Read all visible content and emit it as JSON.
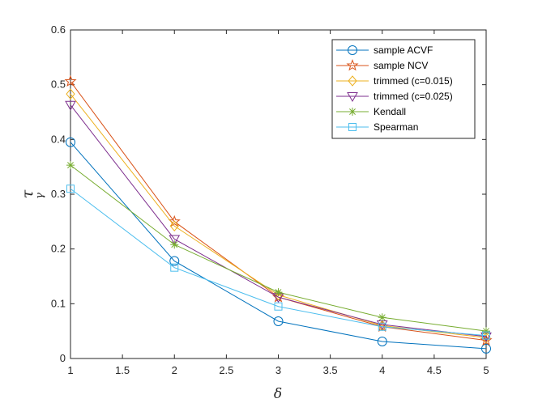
{
  "chart_data": {
    "type": "line",
    "xlabel": "δ",
    "ylabel": "τ",
    "ylabel_sub": "γ",
    "xlim": [
      1,
      5
    ],
    "ylim": [
      0,
      0.6
    ],
    "x_ticks": [
      "1",
      "1.5",
      "2",
      "2.5",
      "3",
      "3.5",
      "4",
      "4.5",
      "5"
    ],
    "y_ticks": [
      "0",
      "0.1",
      "0.2",
      "0.3",
      "0.4",
      "0.5",
      "0.6"
    ],
    "grid": false,
    "legend_position": "top-right",
    "x": [
      1,
      2,
      3,
      4,
      5
    ],
    "series": [
      {
        "name": "sample ACVF",
        "marker": "circle",
        "color": "#0072BD",
        "values": [
          0.395,
          0.178,
          0.068,
          0.031,
          0.018
        ]
      },
      {
        "name": "sample NCV",
        "marker": "pentagram",
        "color": "#D95319",
        "values": [
          0.506,
          0.25,
          0.112,
          0.058,
          0.033
        ]
      },
      {
        "name": "trimmed (c=0.015)",
        "marker": "diamond",
        "color": "#EDB120",
        "values": [
          0.483,
          0.242,
          0.116,
          0.06,
          0.038
        ]
      },
      {
        "name": "trimmed (c=0.025)",
        "marker": "triangle-down",
        "color": "#7E2F8E",
        "values": [
          0.463,
          0.218,
          0.112,
          0.062,
          0.04
        ]
      },
      {
        "name": "Kendall",
        "marker": "asterisk",
        "color": "#77AC30",
        "values": [
          0.353,
          0.208,
          0.121,
          0.075,
          0.05
        ]
      },
      {
        "name": "Spearman",
        "marker": "square",
        "color": "#4DBEEE",
        "values": [
          0.31,
          0.166,
          0.095,
          0.058,
          0.042
        ]
      }
    ]
  }
}
